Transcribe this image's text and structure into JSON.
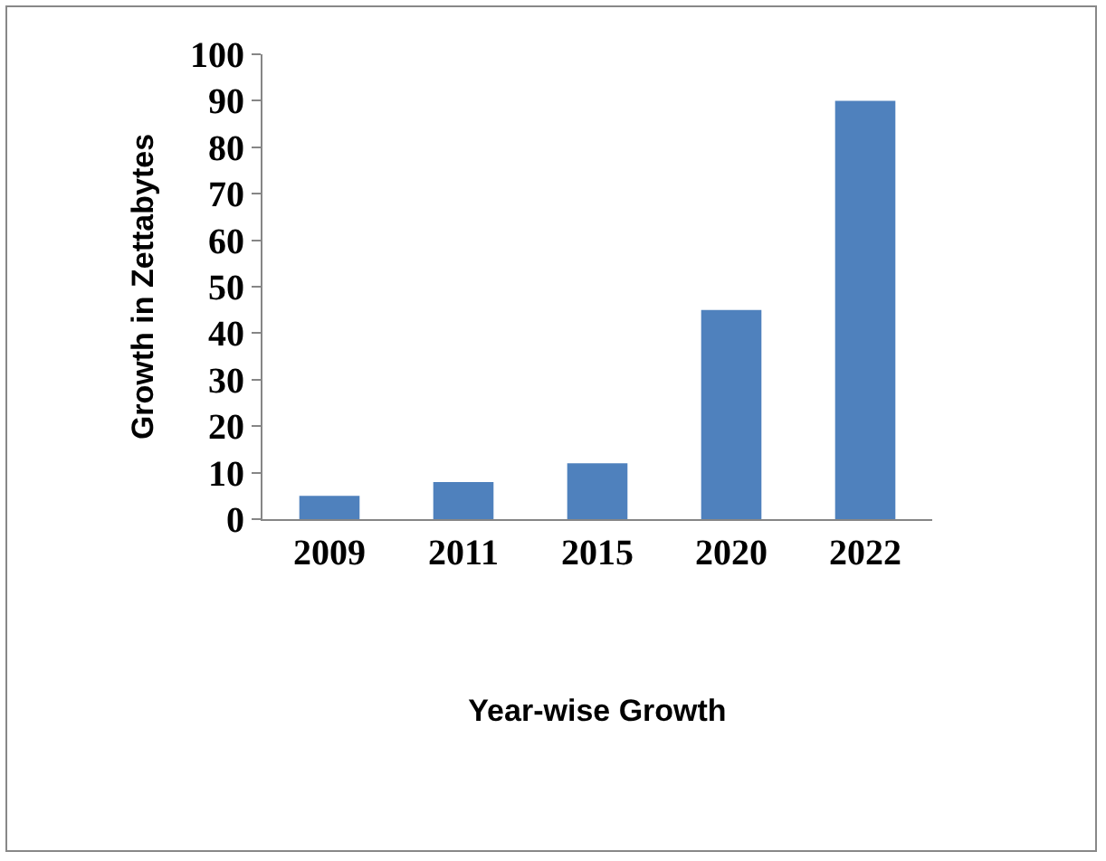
{
  "chart_data": {
    "type": "bar",
    "xlabel": "Year-wise Growth",
    "ylabel": "Growth in Zettabytes",
    "categories": [
      "2009",
      "2011",
      "2015",
      "2020",
      "2022"
    ],
    "values": [
      5,
      8,
      12,
      45,
      90
    ],
    "color": "#4f81bd",
    "ylim": [
      0,
      100
    ],
    "yticks": [
      0,
      10,
      20,
      30,
      40,
      50,
      60,
      70,
      80,
      90,
      100
    ],
    "grid": false
  }
}
